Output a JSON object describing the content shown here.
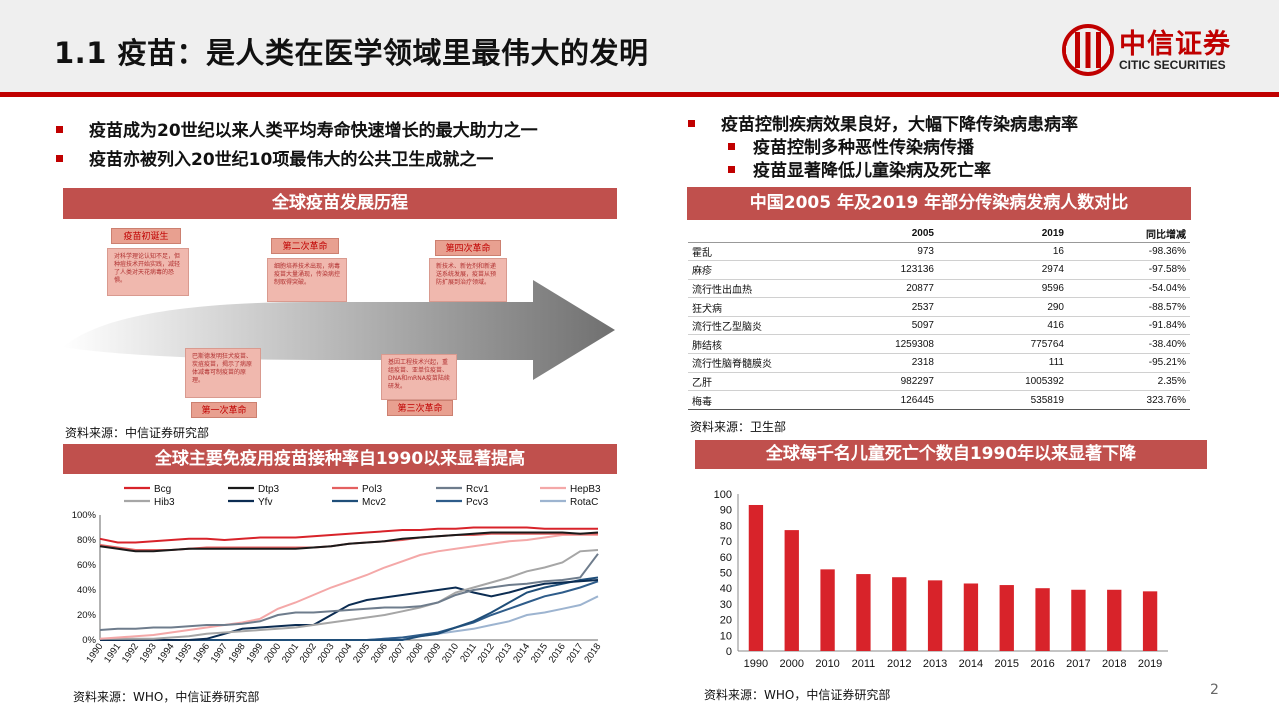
{
  "header": {
    "title": "1.1 疫苗：是人类在医学领域里最伟大的发明",
    "logo_cn": "中信证券",
    "logo_en": "CITIC SECURITIES"
  },
  "left_bullets": [
    "疫苗成为20世纪以来人类平均寿命快速增长的最大助力之一",
    "疫苗亦被列入20世纪10项最伟大的公共卫生成就之一"
  ],
  "right_bullets": {
    "main": "疫苗控制疾病效果良好，大幅下降传染病患病率",
    "subs": [
      "疫苗控制多种恶性传染病传播",
      "疫苗显著降低儿童染病及死亡率"
    ]
  },
  "timeline_section": {
    "title": "全球疫苗发展历程",
    "stages": [
      {
        "label": "疫苗初诞生",
        "text": "对科学理论认知不足，但种痘技术开始实践，减轻了人类对天花病毒的恐惧。"
      },
      {
        "label": "第一次革命",
        "text": "巴斯德发明狂犬疫苗、炭疽疫苗，揭示了病原体减毒可制疫苗的原理。"
      },
      {
        "label": "第二次革命",
        "text": "细胞培养技术出现，病毒疫苗大量涌现，传染病控制取得突破。"
      },
      {
        "label": "第三次革命",
        "text": "基因工程技术兴起，重组疫苗、亚单位疫苗、DNA和mRNA疫苗陆续研发。"
      },
      {
        "label": "第四次革命",
        "text": "新技术、新佐剂和新递送系统发展，疫苗从预防扩展到治疗领域。"
      }
    ],
    "source": "资料来源：中信证券研究部"
  },
  "table_section": {
    "title": "中国2005 年及2019 年部分传染病发病人数对比",
    "columns": [
      "",
      "2005",
      "2019",
      "同比增减"
    ],
    "rows": [
      [
        "霍乱",
        "973",
        "16",
        "-98.36%"
      ],
      [
        "麻疹",
        "123136",
        "2974",
        "-97.58%"
      ],
      [
        "流行性出血热",
        "20877",
        "9596",
        "-54.04%"
      ],
      [
        "狂犬病",
        "2537",
        "290",
        "-88.57%"
      ],
      [
        "流行性乙型脑炎",
        "5097",
        "416",
        "-91.84%"
      ],
      [
        "肺结核",
        "1259308",
        "775764",
        "-38.40%"
      ],
      [
        "流行性脑脊髓膜炎",
        "2318",
        "111",
        "-95.21%"
      ],
      [
        "乙肝",
        "982297",
        "1005392",
        "2.35%"
      ],
      [
        "梅毒",
        "126445",
        "535819",
        "323.76%"
      ]
    ],
    "source": "资料来源：卫生部"
  },
  "line_section": {
    "title": "全球主要免疫用疫苗接种率自1990以来显著提高",
    "source": "资料来源：WHO，中信证券研究部"
  },
  "bar_section": {
    "title": "全球每千名儿童死亡个数自1990年以来显著下降",
    "source": "资料来源：WHO，中信证券研究部"
  },
  "page_number": "2",
  "chart_data": [
    {
      "type": "line",
      "x": [
        "1990",
        "1991",
        "1992",
        "1993",
        "1994",
        "1995",
        "1996",
        "1997",
        "1998",
        "1999",
        "2000",
        "2001",
        "2002",
        "2003",
        "2004",
        "2005",
        "2006",
        "2007",
        "2008",
        "2009",
        "2010",
        "2011",
        "2012",
        "2013",
        "2014",
        "2015",
        "2016",
        "2017",
        "2018"
      ],
      "ylim": [
        0,
        100
      ],
      "y_ticks": [
        "0%",
        "20%",
        "40%",
        "60%",
        "80%",
        "100%"
      ],
      "legend_position": "top",
      "grid": false,
      "series": [
        {
          "name": "Bcg",
          "color": "#d8232a",
          "values": [
            81,
            78,
            78,
            79,
            80,
            81,
            81,
            80,
            81,
            82,
            82,
            82,
            83,
            84,
            85,
            86,
            87,
            88,
            88,
            89,
            89,
            90,
            90,
            90,
            90,
            89,
            89,
            89,
            89
          ]
        },
        {
          "name": "Dtp3",
          "color": "#1a1a1a",
          "values": [
            75,
            73,
            71,
            71,
            72,
            73,
            73,
            73,
            73,
            73,
            73,
            73,
            74,
            75,
            77,
            78,
            79,
            81,
            82,
            83,
            84,
            85,
            86,
            86,
            86,
            86,
            86,
            85,
            86
          ]
        },
        {
          "name": "Pol3",
          "color": "#e46060",
          "values": [
            76,
            74,
            72,
            72,
            72,
            73,
            74,
            74,
            74,
            74,
            74,
            74,
            74,
            75,
            77,
            78,
            79,
            80,
            82,
            83,
            84,
            84,
            85,
            85,
            85,
            85,
            85,
            85,
            85
          ]
        },
        {
          "name": "Rcv1",
          "color": "#6e7c8c",
          "values": [
            8,
            9,
            9,
            10,
            10,
            11,
            12,
            12,
            13,
            15,
            20,
            22,
            22,
            23,
            24,
            25,
            26,
            26,
            27,
            30,
            36,
            40,
            42,
            44,
            45,
            47,
            48,
            50,
            69
          ]
        },
        {
          "name": "HepB3",
          "color": "#f4a8a8",
          "values": [
            1,
            2,
            3,
            4,
            6,
            8,
            10,
            12,
            14,
            17,
            25,
            30,
            36,
            42,
            47,
            52,
            58,
            63,
            68,
            71,
            73,
            75,
            77,
            79,
            80,
            82,
            84,
            84,
            84
          ]
        },
        {
          "name": "Hib3",
          "color": "#a6a6a6",
          "values": [
            1,
            1,
            1,
            1,
            2,
            3,
            5,
            6,
            7,
            8,
            9,
            10,
            12,
            14,
            16,
            18,
            20,
            23,
            26,
            30,
            38,
            42,
            46,
            50,
            55,
            58,
            62,
            71,
            72
          ]
        },
        {
          "name": "Yfv",
          "color": "#0b2c52",
          "values": [
            0,
            0,
            0,
            0,
            0,
            0,
            1,
            5,
            9,
            10,
            11,
            12,
            12,
            20,
            28,
            32,
            34,
            36,
            38,
            40,
            42,
            38,
            35,
            38,
            42,
            45,
            46,
            47,
            48
          ]
        },
        {
          "name": "Mcv2",
          "color": "#1f4e79",
          "values": [
            0,
            0,
            0,
            0,
            0,
            0,
            0,
            0,
            0,
            0,
            0,
            0,
            0,
            0,
            0,
            0,
            0,
            0,
            3,
            5,
            10,
            15,
            22,
            30,
            38,
            42,
            45,
            48,
            50
          ]
        },
        {
          "name": "Pcv3",
          "color": "#2e5c8a",
          "values": [
            0,
            0,
            0,
            0,
            0,
            0,
            0,
            0,
            0,
            0,
            0,
            0,
            0,
            0,
            0,
            0,
            1,
            2,
            4,
            6,
            10,
            14,
            20,
            25,
            30,
            35,
            38,
            42,
            47
          ]
        },
        {
          "name": "RotaC",
          "color": "#9db4d0",
          "values": [
            0,
            0,
            0,
            0,
            0,
            0,
            0,
            0,
            0,
            0,
            0,
            0,
            0,
            0,
            0,
            0,
            1,
            2,
            3,
            5,
            7,
            9,
            12,
            15,
            20,
            22,
            25,
            28,
            35
          ]
        }
      ]
    },
    {
      "type": "bar",
      "categories": [
        "1990",
        "2000",
        "2010",
        "2011",
        "2012",
        "2013",
        "2014",
        "2015",
        "2016",
        "2017",
        "2018",
        "2019"
      ],
      "values": [
        93,
        77,
        52,
        49,
        47,
        45,
        43,
        42,
        40,
        39,
        39,
        38
      ],
      "ylim": [
        0,
        100
      ],
      "y_ticks": [
        "0",
        "10",
        "20",
        "30",
        "40",
        "50",
        "60",
        "70",
        "80",
        "90",
        "100"
      ],
      "color": "#d8232a",
      "grid": false
    }
  ]
}
